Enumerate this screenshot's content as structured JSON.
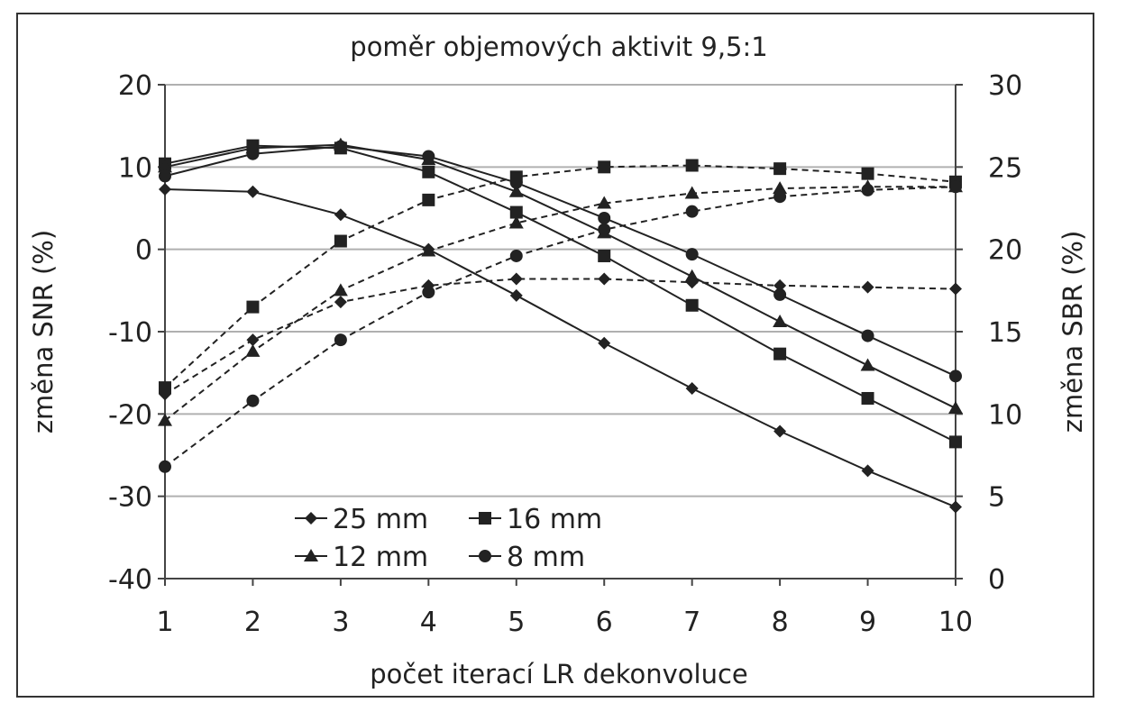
{
  "chart_data": {
    "type": "line",
    "title": "poměr objemových aktivit 9,5:1",
    "xlabel": "počet iterací LR dekonvoluce",
    "ylabel_left": "změna SNR (%)",
    "ylabel_right": "změna SBR (%)",
    "x": [
      1,
      2,
      3,
      4,
      5,
      6,
      7,
      8,
      9,
      10
    ],
    "ylim_left": [
      -40,
      20
    ],
    "yticks_left": [
      -40,
      -30,
      -20,
      -10,
      0,
      10,
      20
    ],
    "ylim_right": [
      0,
      30
    ],
    "yticks_right": [
      0,
      5,
      10,
      15,
      20,
      25,
      30
    ],
    "grid": true,
    "legend_placement": "lower-left",
    "series": [
      {
        "name": "25 mm",
        "marker": "diamond",
        "axis": "left",
        "style": "solid",
        "values": [
          7.3,
          7.0,
          4.2,
          0.0,
          -5.6,
          -11.4,
          -16.9,
          -22.1,
          -26.9,
          -31.3
        ]
      },
      {
        "name": "16 mm",
        "marker": "square",
        "axis": "left",
        "style": "solid",
        "values": [
          10.4,
          12.6,
          12.3,
          9.4,
          4.5,
          -0.8,
          -6.8,
          -12.7,
          -18.1,
          -23.4
        ]
      },
      {
        "name": "12 mm",
        "marker": "triangle",
        "axis": "left",
        "style": "solid",
        "values": [
          10.0,
          12.3,
          12.7,
          10.9,
          7.0,
          2.0,
          -3.3,
          -8.8,
          -14.1,
          -19.3
        ]
      },
      {
        "name": "8 mm",
        "marker": "circle",
        "axis": "left",
        "style": "solid",
        "values": [
          8.9,
          11.6,
          12.5,
          11.3,
          8.1,
          3.8,
          -0.6,
          -5.5,
          -10.5,
          -15.4
        ]
      },
      {
        "name": "25 mm",
        "marker": "diamond",
        "axis": "right",
        "style": "dashed",
        "values": [
          11.2,
          14.5,
          16.8,
          17.8,
          18.2,
          18.2,
          18.0,
          17.8,
          17.7,
          17.6
        ]
      },
      {
        "name": "16 mm",
        "marker": "square",
        "axis": "right",
        "style": "dashed",
        "values": [
          11.6,
          16.5,
          20.5,
          23.0,
          24.4,
          25.0,
          25.1,
          24.9,
          24.6,
          24.1
        ]
      },
      {
        "name": "12 mm",
        "marker": "triangle",
        "axis": "right",
        "style": "dashed",
        "values": [
          9.6,
          13.8,
          17.5,
          19.9,
          21.6,
          22.8,
          23.4,
          23.7,
          23.8,
          23.8
        ]
      },
      {
        "name": "8 mm",
        "marker": "circle",
        "axis": "right",
        "style": "dashed",
        "values": [
          6.8,
          10.8,
          14.5,
          17.4,
          19.6,
          21.2,
          22.3,
          23.2,
          23.6,
          23.8
        ]
      }
    ],
    "legend": [
      "25 mm",
      "16 mm",
      "12 mm",
      "8 mm"
    ],
    "colors": {
      "line": "#222222",
      "grid": "#b0b0b0",
      "frame": "#333333"
    }
  }
}
